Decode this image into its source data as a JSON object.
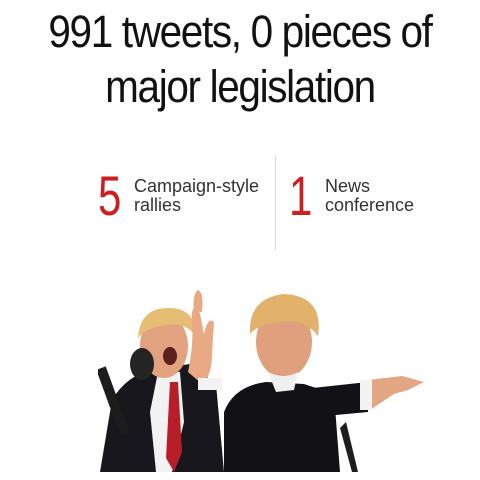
{
  "headline": {
    "line1": "991 tweets, 0 pieces of",
    "line2": "major legislation"
  },
  "stats": [
    {
      "number": "5",
      "label_line1": "Campaign-style",
      "label_line2": "rallies"
    },
    {
      "number": "1",
      "label_line1": "News",
      "label_line2": "conference"
    }
  ],
  "colors": {
    "accent": "#cc1f1f",
    "text": "#111111",
    "label": "#333333"
  }
}
